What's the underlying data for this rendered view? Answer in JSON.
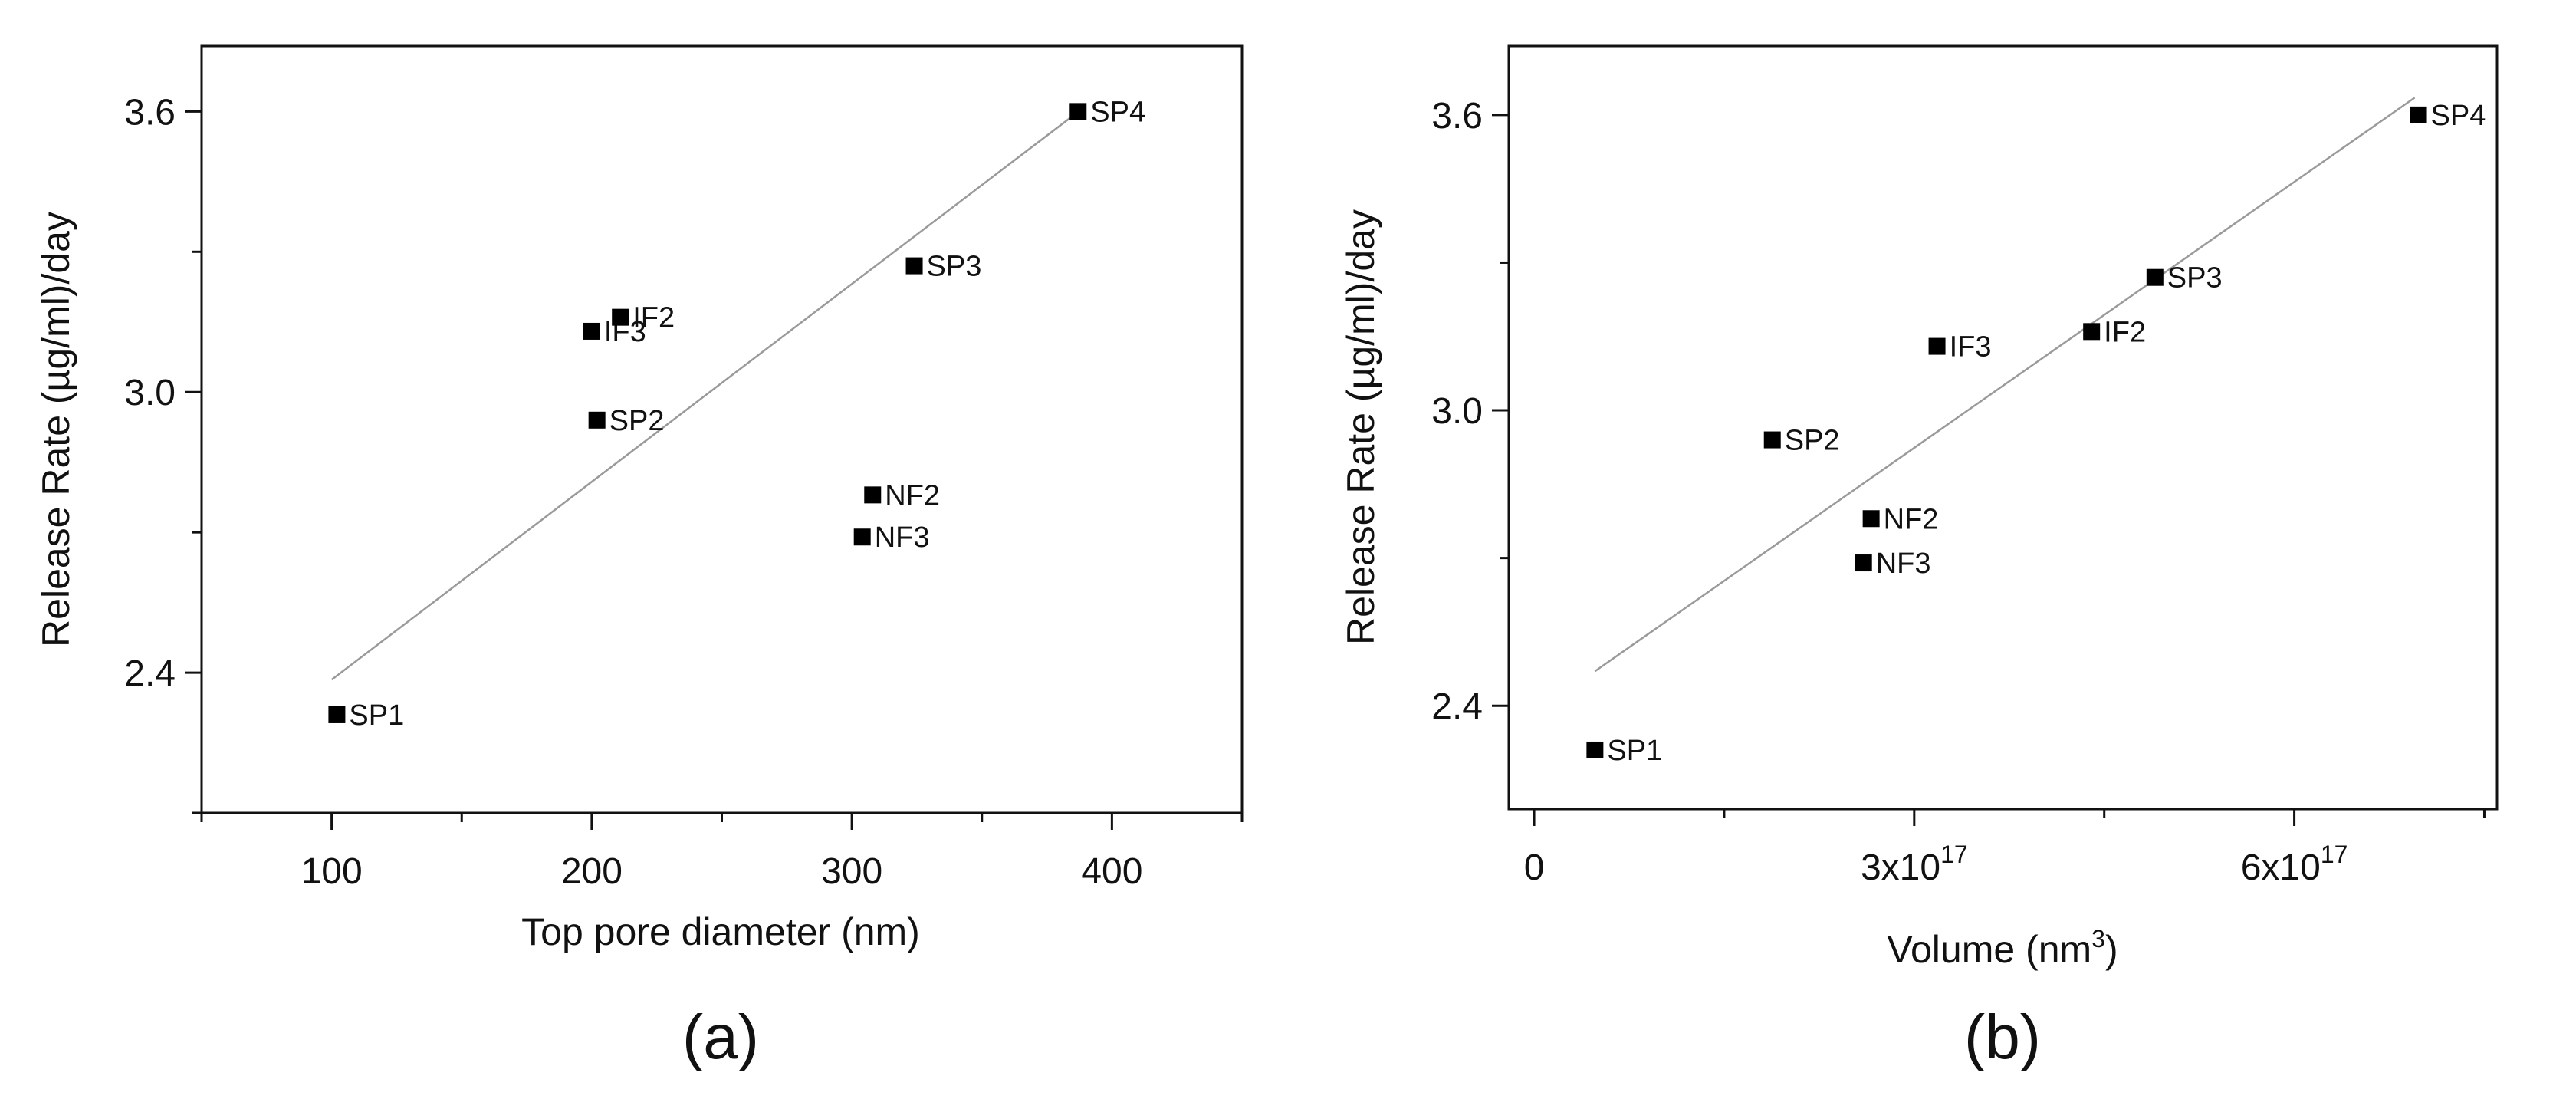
{
  "colors": {
    "axis": "#111111",
    "marker": "#000000",
    "fit_line": "#9a9a9a",
    "background": "#ffffff"
  },
  "chart_data": [
    {
      "type": "scatter",
      "panel_label": "(a)",
      "title": "",
      "xlabel": "Top pore diameter (nm)",
      "ylabel": "Release Rate (µg/ml)/day",
      "xlim": [
        50,
        450
      ],
      "ylim": [
        2.1,
        3.74
      ],
      "x_major_ticks": [
        100,
        200,
        300,
        400
      ],
      "x_tick_labels": [
        "100",
        "200",
        "300",
        "400"
      ],
      "x_minor_ticks": [
        50,
        150,
        250,
        350,
        450
      ],
      "y_major_ticks": [
        2.4,
        3.0,
        3.6
      ],
      "y_tick_labels": [
        "2.4",
        "3.0",
        "3.6"
      ],
      "y_minor_ticks": [
        2.1,
        2.7,
        3.3
      ],
      "grid": false,
      "points": [
        {
          "label": "SP1",
          "x": 102,
          "y": 2.31
        },
        {
          "label": "SP2",
          "x": 202,
          "y": 2.94
        },
        {
          "label": "IF3",
          "x": 200,
          "y": 3.13
        },
        {
          "label": "IF2",
          "x": 211,
          "y": 3.16
        },
        {
          "label": "SP3",
          "x": 324,
          "y": 3.27
        },
        {
          "label": "NF2",
          "x": 308,
          "y": 2.78
        },
        {
          "label": "NF3",
          "x": 304,
          "y": 2.69
        },
        {
          "label": "SP4",
          "x": 387,
          "y": 3.6
        }
      ],
      "fit_line": {
        "x": [
          100,
          386
        ],
        "y": [
          2.385,
          3.595
        ]
      }
    },
    {
      "type": "scatter",
      "panel_label": "(b)",
      "title": "",
      "xlabel": "Volume (nm",
      "xlabel_superscript": "3",
      "xlabel_suffix": ")",
      "ylabel": "Release Rate (µg/ml)/day",
      "xlim": [
        -2e+16,
        7.6e+17
      ],
      "ylim": [
        2.19,
        3.74
      ],
      "x_major_ticks": [
        0,
        3e+17,
        6e+17
      ],
      "x_tick_labels": [
        {
          "base": "0",
          "exp": ""
        },
        {
          "base": "3x10",
          "exp": "17"
        },
        {
          "base": "6x10",
          "exp": "17"
        }
      ],
      "x_minor_ticks": [
        1.5e+17,
        4.5e+17,
        7.5e+17
      ],
      "y_major_ticks": [
        2.4,
        3.0,
        3.6
      ],
      "y_tick_labels": [
        "2.4",
        "3.0",
        "3.6"
      ],
      "y_minor_ticks": [
        2.7,
        3.3
      ],
      "grid": false,
      "points": [
        {
          "label": "SP1",
          "x": 4.8e+16,
          "y": 2.31
        },
        {
          "label": "SP2",
          "x": 1.88e+17,
          "y": 2.94
        },
        {
          "label": "IF3",
          "x": 3.18e+17,
          "y": 3.13
        },
        {
          "label": "IF2",
          "x": 4.4e+17,
          "y": 3.16
        },
        {
          "label": "SP3",
          "x": 4.9e+17,
          "y": 3.27
        },
        {
          "label": "NF2",
          "x": 2.66e+17,
          "y": 2.78
        },
        {
          "label": "NF3",
          "x": 2.6e+17,
          "y": 2.69
        },
        {
          "label": "SP4",
          "x": 6.98e+17,
          "y": 3.6
        }
      ],
      "fit_line": {
        "x": [
          4.8e+16,
          6.95e+17
        ],
        "y": [
          2.47,
          3.635
        ]
      }
    }
  ]
}
